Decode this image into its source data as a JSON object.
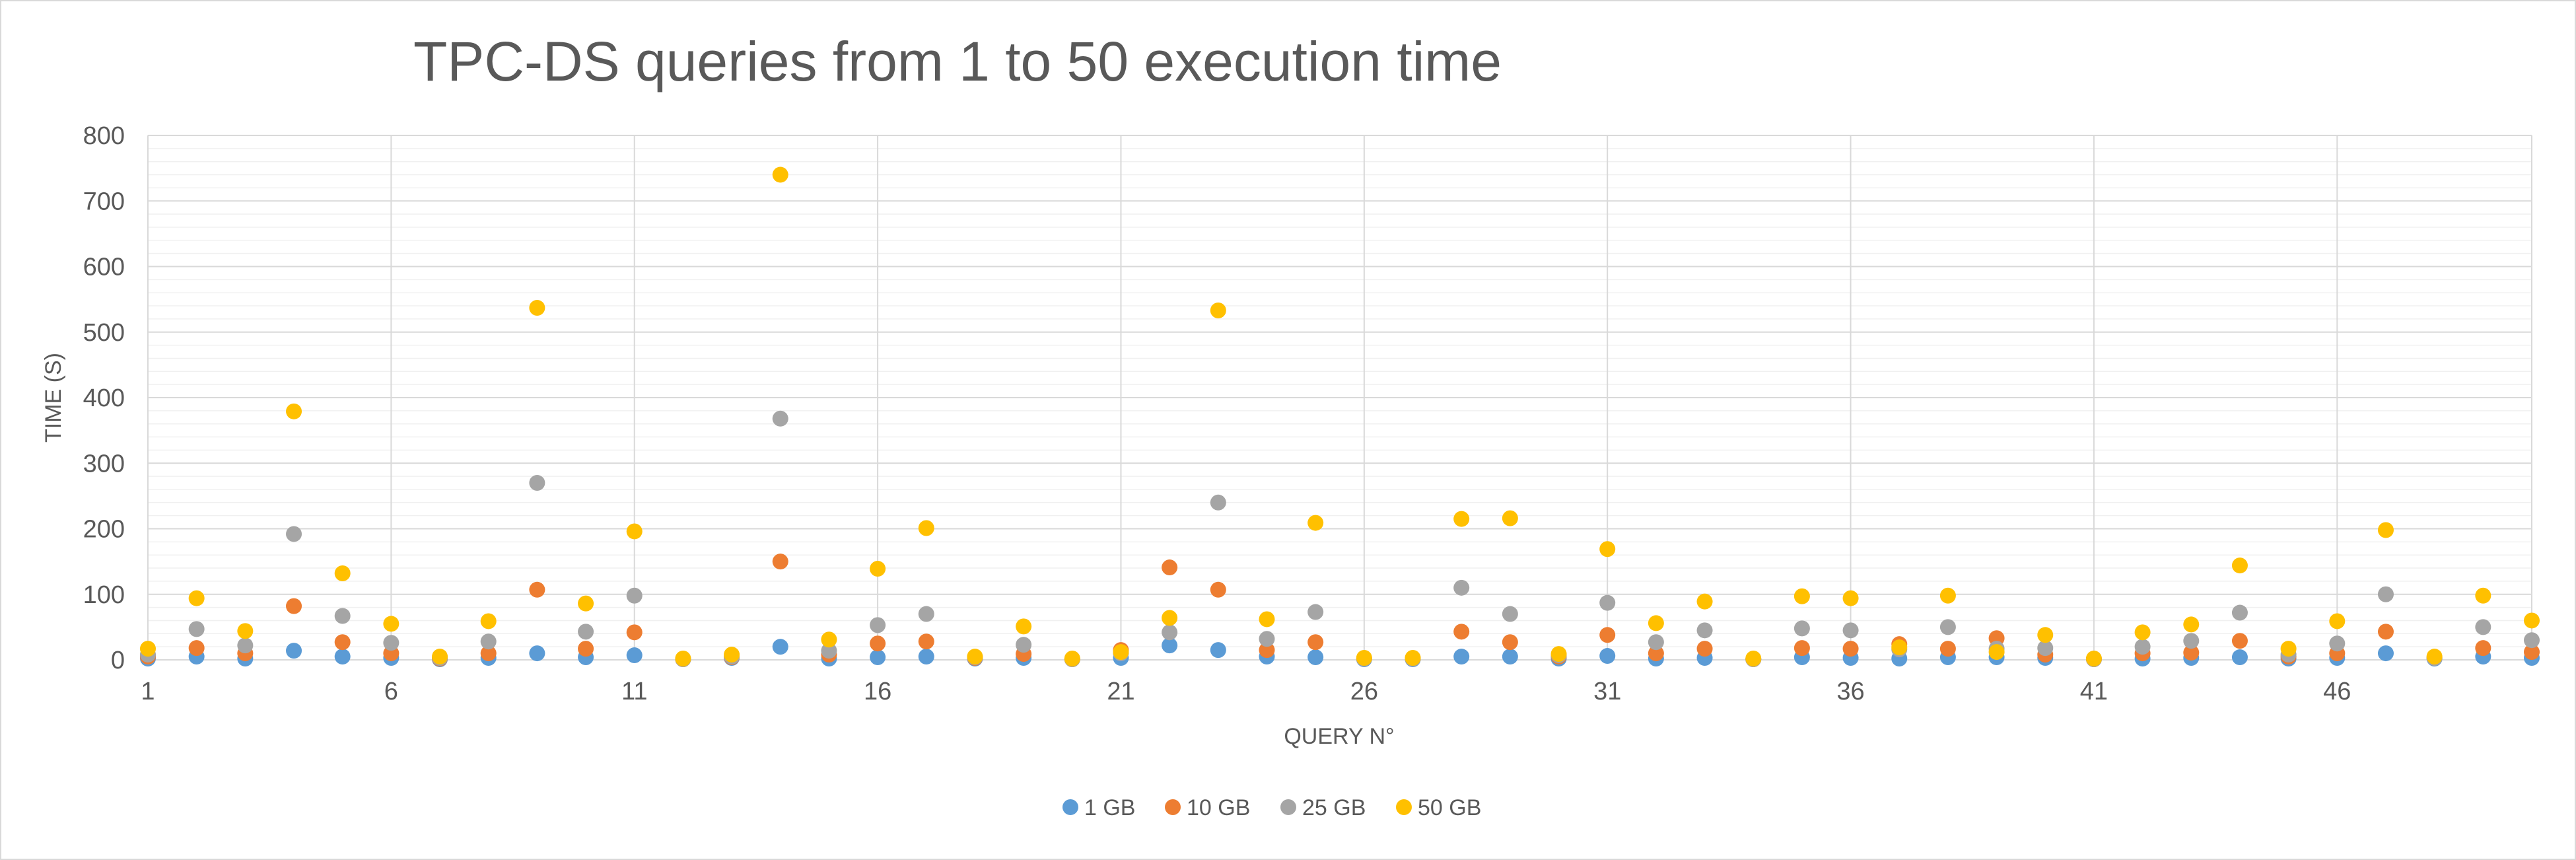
{
  "chart_data": {
    "type": "scatter",
    "title": "TPC-DS queries from 1 to 50 execution time",
    "xlabel": "QUERY N°",
    "ylabel": "TIME (S)",
    "xlim": [
      1,
      50
    ],
    "ylim": [
      0,
      800
    ],
    "x_ticks": [
      1,
      6,
      11,
      16,
      21,
      26,
      31,
      36,
      41,
      46
    ],
    "y_ticks": [
      0,
      100,
      200,
      300,
      400,
      500,
      600,
      700,
      800
    ],
    "grid": "major-and-minor",
    "legend_position": "bottom",
    "x": [
      1,
      2,
      3,
      4,
      5,
      6,
      7,
      8,
      9,
      10,
      11,
      12,
      13,
      14,
      15,
      16,
      17,
      18,
      19,
      20,
      21,
      22,
      23,
      24,
      25,
      26,
      27,
      28,
      29,
      30,
      31,
      32,
      33,
      34,
      35,
      36,
      37,
      38,
      39,
      40,
      41,
      42,
      43,
      44,
      45,
      46,
      47,
      48,
      49,
      50
    ],
    "series": [
      {
        "name": "1 GB",
        "color": "#5B9BD5",
        "values": [
          2,
          5,
          2,
          14,
          5,
          3,
          1,
          3,
          10,
          4,
          7,
          1,
          3,
          20,
          2,
          4,
          5,
          2,
          3,
          1,
          3,
          22,
          15,
          5,
          4,
          1,
          1,
          5,
          5,
          2,
          6,
          2,
          3,
          1,
          4,
          3,
          2,
          4,
          4,
          3,
          1,
          2,
          3,
          4,
          2,
          3,
          10,
          2,
          5,
          3
        ]
      },
      {
        "name": "10 GB",
        "color": "#ED7D31",
        "values": [
          5,
          18,
          10,
          82,
          27,
          10,
          2,
          10,
          107,
          17,
          42,
          1,
          4,
          150,
          8,
          25,
          28,
          3,
          9,
          1,
          15,
          141,
          107,
          15,
          27,
          2,
          2,
          43,
          27,
          5,
          38,
          10,
          17,
          1,
          18,
          17,
          24,
          17,
          33,
          8,
          1,
          10,
          11,
          29,
          5,
          10,
          43,
          3,
          18,
          12
        ]
      },
      {
        "name": "25 GB",
        "color": "#A5A5A5",
        "values": [
          8,
          47,
          22,
          192,
          67,
          26,
          3,
          28,
          270,
          43,
          98,
          1,
          5,
          368,
          14,
          53,
          70,
          4,
          23,
          1,
          10,
          42,
          240,
          32,
          73,
          2,
          2,
          110,
          70,
          7,
          87,
          27,
          45,
          1,
          48,
          45,
          16,
          50,
          17,
          18,
          1,
          20,
          29,
          72,
          8,
          25,
          100,
          3,
          50,
          30
        ]
      },
      {
        "name": "50 GB",
        "color": "#FFC000",
        "values": [
          17,
          94,
          44,
          379,
          132,
          55,
          5,
          59,
          537,
          86,
          196,
          2,
          8,
          740,
          31,
          139,
          201,
          5,
          51,
          2,
          12,
          64,
          533,
          62,
          209,
          3,
          3,
          215,
          216,
          9,
          169,
          56,
          89,
          2,
          97,
          94,
          19,
          98,
          12,
          38,
          2,
          42,
          54,
          144,
          17,
          59,
          198,
          5,
          98,
          60
        ]
      }
    ]
  }
}
